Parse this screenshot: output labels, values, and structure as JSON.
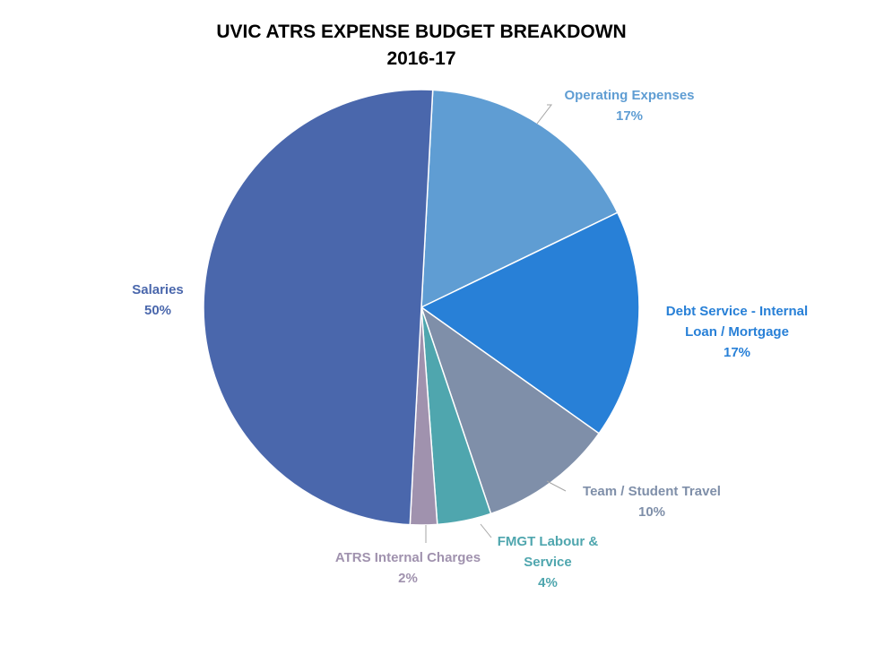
{
  "chart_data": {
    "type": "pie",
    "title_lines": [
      "UVIC ATRS EXPENSE BUDGET BREAKDOWN",
      "2016-17"
    ],
    "slices": [
      {
        "label_lines": [
          "Operating Expenses",
          "17%"
        ],
        "value": 17,
        "color": "#5F9DD3"
      },
      {
        "label_lines": [
          "Debt Service - Internal",
          "Loan / Mortgage",
          "17%"
        ],
        "value": 17,
        "color": "#2880D7"
      },
      {
        "label_lines": [
          "Team / Student Travel",
          "10%"
        ],
        "value": 10,
        "color": "#7F8FA9"
      },
      {
        "label_lines": [
          "FMGT Labour &",
          "Service",
          "4%"
        ],
        "value": 4,
        "color": "#4FA6AE"
      },
      {
        "label_lines": [
          "ATRS Internal Charges",
          "2%"
        ],
        "value": 2,
        "color": "#A092AE"
      },
      {
        "label_lines": [
          "Salaries",
          "50%"
        ],
        "value": 50,
        "color": "#4A67AC"
      }
    ],
    "legend": "none"
  }
}
